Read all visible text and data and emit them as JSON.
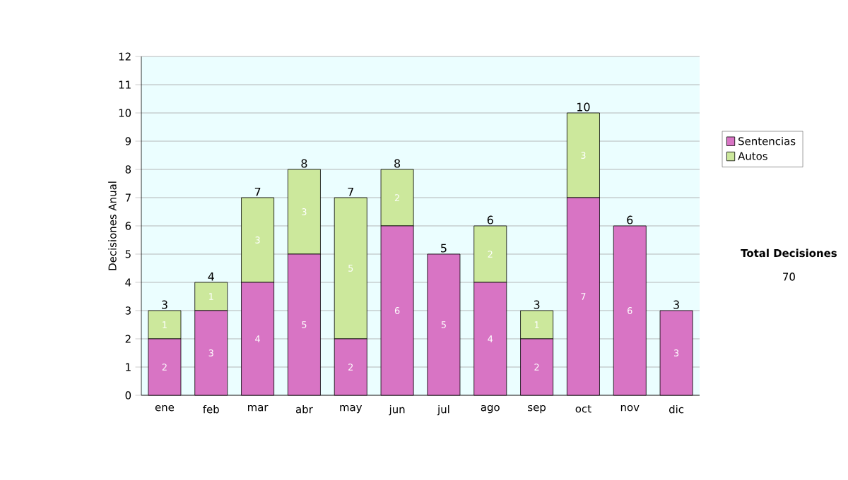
{
  "chart_data": {
    "type": "bar",
    "stacked": true,
    "ylabel": "Decisiones Anual",
    "categories": [
      "ene",
      "feb",
      "mar",
      "abr",
      "may",
      "jun",
      "jul",
      "ago",
      "sep",
      "oct",
      "nov",
      "dic"
    ],
    "series": [
      {
        "name": "Sentencias",
        "color": "#d874c4",
        "values": [
          2,
          3,
          4,
          5,
          2,
          6,
          5,
          4,
          2,
          7,
          6,
          3
        ],
        "value_labels": [
          "2",
          "3",
          "4",
          "5",
          "2",
          "6",
          "5",
          "4",
          "2",
          "7",
          "6",
          "3"
        ]
      },
      {
        "name": "Autos",
        "color": "#cce89c",
        "values": [
          1,
          1,
          3,
          3,
          5,
          2,
          0,
          2,
          1,
          3,
          0,
          0
        ],
        "value_labels": [
          "1",
          "1",
          "3",
          "3",
          "5",
          "2",
          null,
          "2",
          "1",
          "3",
          null,
          null
        ]
      }
    ],
    "totals": [
      "3",
      "4",
      "7",
      "8",
      "7",
      "8",
      "5",
      "6",
      "3",
      "10",
      "6",
      "3"
    ],
    "ylim": [
      0,
      12
    ],
    "yticks": [
      0,
      1,
      2,
      3,
      4,
      5,
      6,
      7,
      8,
      9,
      10,
      11,
      12
    ],
    "grid": "y",
    "legend": "right",
    "annotations": [
      "Total Decisiones",
      "70"
    ]
  }
}
